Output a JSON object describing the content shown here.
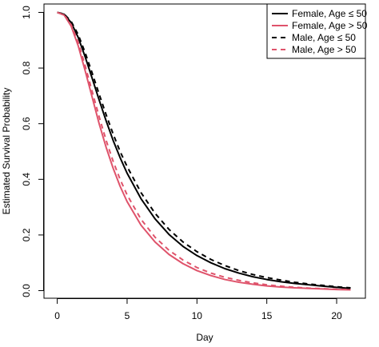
{
  "chart_data": {
    "type": "line",
    "title": "",
    "xlabel": "Day",
    "ylabel": "Estimated Survival Probability",
    "xlim": [
      0,
      21
    ],
    "ylim": [
      0,
      1
    ],
    "xticks": [
      0,
      5,
      10,
      15,
      20
    ],
    "yticks": [
      0.0,
      0.2,
      0.4,
      0.6,
      0.8,
      1.0
    ],
    "ytick_labels": [
      "0.0",
      "0.2",
      "0.4",
      "0.6",
      "0.8",
      "1.0"
    ],
    "grid": false,
    "legend_position": "top-right",
    "x": [
      0,
      0.5,
      1,
      1.5,
      2,
      2.5,
      3,
      3.5,
      4,
      4.5,
      5,
      6,
      7,
      8,
      9,
      10,
      11,
      12,
      13,
      14,
      15,
      16,
      17,
      18,
      19,
      20,
      21
    ],
    "series": [
      {
        "name": "Female, Age ≤ 50",
        "color": "#000000",
        "dash": "solid",
        "values": [
          1.0,
          0.993,
          0.963,
          0.91,
          0.84,
          0.763,
          0.685,
          0.61,
          0.54,
          0.478,
          0.422,
          0.33,
          0.258,
          0.202,
          0.159,
          0.126,
          0.1,
          0.079,
          0.063,
          0.05,
          0.04,
          0.032,
          0.026,
          0.021,
          0.016,
          0.012,
          0.008
        ]
      },
      {
        "name": "Female, Age > 50",
        "color": "#DF536B",
        "dash": "solid",
        "values": [
          1.0,
          0.99,
          0.95,
          0.88,
          0.79,
          0.695,
          0.6,
          0.515,
          0.44,
          0.375,
          0.32,
          0.235,
          0.175,
          0.13,
          0.097,
          0.072,
          0.054,
          0.04,
          0.03,
          0.023,
          0.017,
          0.013,
          0.01,
          0.008,
          0.006,
          0.004,
          0.003
        ]
      },
      {
        "name": "Male, Age ≤ 50",
        "color": "#000000",
        "dash": "dashed",
        "values": [
          1.0,
          0.994,
          0.967,
          0.92,
          0.855,
          0.782,
          0.706,
          0.632,
          0.563,
          0.5,
          0.446,
          0.352,
          0.278,
          0.22,
          0.175,
          0.14,
          0.112,
          0.09,
          0.072,
          0.058,
          0.047,
          0.038,
          0.03,
          0.024,
          0.019,
          0.014,
          0.01
        ]
      },
      {
        "name": "Male, Age > 50",
        "color": "#DF536B",
        "dash": "dashed",
        "values": [
          1.0,
          0.991,
          0.955,
          0.892,
          0.808,
          0.716,
          0.625,
          0.54,
          0.465,
          0.4,
          0.344,
          0.256,
          0.192,
          0.145,
          0.11,
          0.083,
          0.063,
          0.048,
          0.037,
          0.028,
          0.021,
          0.016,
          0.012,
          0.009,
          0.007,
          0.005,
          0.004
        ]
      }
    ]
  }
}
